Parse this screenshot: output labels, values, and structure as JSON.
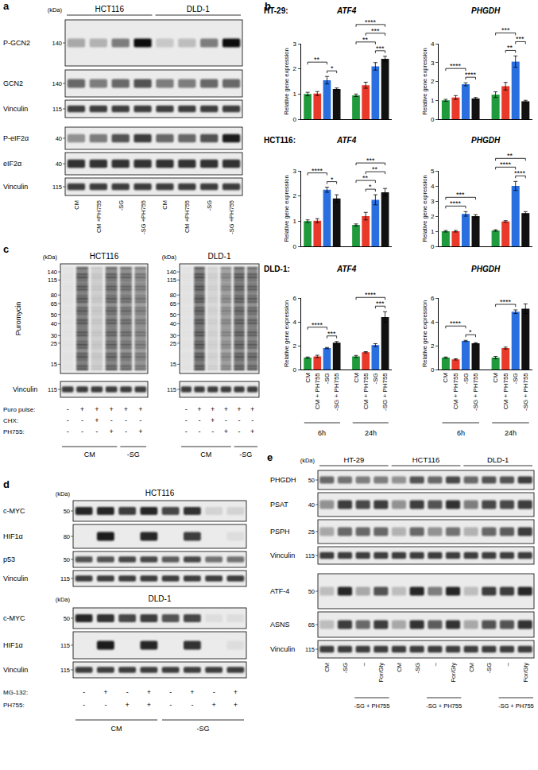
{
  "panel_labels": [
    "a",
    "b",
    "c",
    "d",
    "e"
  ],
  "panel_a": {
    "kda": "(kDa)",
    "groups": [
      {
        "name": "HCT116",
        "lanes": [
          "CM",
          "CM +PH755",
          "-SG",
          "-SG +PH755"
        ]
      },
      {
        "name": "DLD-1",
        "lanes": [
          "CM",
          "CM +PH755",
          "-SG",
          "-SG +PH755"
        ]
      }
    ],
    "rows": [
      {
        "label": "P-GCN2",
        "marker": 140,
        "intensity": [
          0.3,
          0.25,
          0.5,
          1.0,
          0.15,
          0.2,
          0.5,
          1.0
        ]
      },
      {
        "label": "GCN2",
        "marker": 140,
        "intensity": [
          0.6,
          0.5,
          0.6,
          0.7,
          0.5,
          0.5,
          0.6,
          0.6
        ]
      },
      {
        "label": "Vinculin",
        "marker": 115,
        "intensity": [
          0.8,
          0.8,
          0.8,
          0.8,
          0.8,
          0.8,
          0.8,
          0.8
        ]
      },
      {
        "label": "P-eIF2α",
        "marker": 40,
        "intensity": [
          0.4,
          0.5,
          0.7,
          0.8,
          0.6,
          0.6,
          0.7,
          0.95
        ]
      },
      {
        "label": "eIF2α",
        "marker": 40,
        "intensity": [
          0.85,
          0.85,
          0.85,
          0.85,
          0.85,
          0.85,
          0.85,
          0.85
        ]
      },
      {
        "label": "Vinculin",
        "marker": 115,
        "intensity": [
          0.8,
          0.8,
          0.8,
          0.8,
          0.8,
          0.8,
          0.8,
          0.8
        ]
      }
    ]
  },
  "panel_c": {
    "kda": "(kDa)",
    "groups": [
      {
        "name": "HCT116",
        "rows": [
          {
            "label": "Puromycin",
            "smear": true,
            "markers": [
              140,
              115,
              80,
              65,
              50,
              40,
              30,
              25,
              15
            ],
            "intensity": [
              0.05,
              0.9,
              0.2,
              0.85,
              0.8,
              0.7
            ]
          },
          {
            "label": "Vinculin",
            "marker": 115,
            "intensity": [
              0.8,
              0.8,
              0.8,
              0.8,
              0.8,
              0.8
            ]
          }
        ]
      },
      {
        "name": "DLD-1",
        "rows": [
          {
            "smear": true,
            "markers": [
              140,
              115,
              80,
              65,
              50,
              40,
              30,
              25,
              15
            ],
            "intensity": [
              0.05,
              0.95,
              0.15,
              0.6,
              0.9,
              0.85
            ]
          },
          {
            "marker": 115,
            "intensity": [
              0.8,
              0.8,
              0.8,
              0.8,
              0.8,
              0.8
            ]
          }
        ]
      }
    ],
    "conditions": [
      {
        "label": "Puro pulse:",
        "values": [
          "-",
          "+",
          "+",
          "+",
          "+",
          "+"
        ]
      },
      {
        "label": "CHX:",
        "values": [
          "-",
          "-",
          "+",
          "-",
          "-",
          "-"
        ]
      },
      {
        "label": "PH755:",
        "values": [
          "-",
          "-",
          "-",
          "+",
          "-",
          "+"
        ]
      }
    ],
    "media": [
      "CM",
      "CM",
      "CM",
      "CM",
      "-SG",
      "-SG"
    ]
  },
  "panel_d": {
    "kda": "(kDa)",
    "groups": [
      {
        "name": "HCT116",
        "rows": [
          {
            "label": "c-MYC",
            "marker": 50,
            "intensity": [
              0.9,
              0.9,
              0.8,
              0.9,
              0.75,
              0.85,
              0.1,
              0.1
            ]
          },
          {
            "label": "HIF1α",
            "marker": 80,
            "intensity": [
              0,
              0.95,
              0,
              0.9,
              0,
              0.8,
              0,
              0.05
            ]
          },
          {
            "label": "p53",
            "marker": 50,
            "intensity": [
              0.7,
              0.7,
              0.75,
              0.75,
              0.65,
              0.75,
              0.55,
              0.55
            ]
          },
          {
            "label": "Vinculin",
            "marker": 115,
            "intensity": [
              0.8,
              0.8,
              0.8,
              0.8,
              0.8,
              0.8,
              0.8,
              0.8
            ]
          }
        ]
      },
      {
        "name": "DLD-1",
        "rows": [
          {
            "label": "c-MYC",
            "marker": 50,
            "intensity": [
              0.9,
              0.85,
              0.75,
              0.8,
              0.7,
              0.75,
              0.05,
              0.05
            ]
          },
          {
            "label": "HIF1α",
            "marker": 115,
            "intensity": [
              0,
              0.95,
              0,
              0.9,
              0,
              0.85,
              0,
              0.05
            ]
          },
          {
            "label": "Vinculin",
            "marker": 115,
            "intensity": [
              0.8,
              0.8,
              0.8,
              0.8,
              0.8,
              0.8,
              0.8,
              0.8
            ]
          }
        ]
      }
    ],
    "conditions": [
      {
        "label": "MG-132:",
        "values": [
          "-",
          "+",
          "-",
          "+",
          "-",
          "+",
          "-",
          "+"
        ]
      },
      {
        "label": "PH755:",
        "values": [
          "-",
          "-",
          "+",
          "+",
          "-",
          "-",
          "+",
          "+"
        ]
      }
    ],
    "media": [
      "CM",
      "CM",
      "CM",
      "CM",
      "-SG",
      "-SG",
      "-SG",
      "-SG"
    ]
  },
  "panel_e": {
    "kda": "(kDa)",
    "groups": [
      {
        "name": "HT-29",
        "lanes": [
          "CM",
          "-SG",
          "–",
          "For/Gly"
        ],
        "under": [
          null,
          null,
          "-SG + PH755",
          "-SG + PH755"
        ]
      },
      {
        "name": "HCT116",
        "lanes": [
          "CM",
          "-SG",
          "–",
          "For/Gly"
        ],
        "under": [
          null,
          null,
          "-SG + PH755",
          "-SG + PH755"
        ]
      },
      {
        "name": "DLD-1",
        "lanes": [
          "CM",
          "-SG",
          "–",
          "For/Gly"
        ],
        "under": [
          null,
          null,
          "-SG + PH755",
          "-SG + PH755"
        ]
      }
    ],
    "rows": [
      {
        "label": "PHGDH",
        "marker": 50,
        "intensity": [
          0.6,
          0.55,
          0.5,
          0.5,
          0.4,
          0.7,
          0.6,
          0.75,
          0.6,
          0.7,
          0.7,
          0.8
        ]
      },
      {
        "label": "PSAT",
        "marker": 40,
        "intensity": [
          0.4,
          0.8,
          0.75,
          0.8,
          0.4,
          0.8,
          0.7,
          0.85,
          0.5,
          0.75,
          0.75,
          0.8
        ]
      },
      {
        "label": "PSPH",
        "marker": 25,
        "intensity": [
          0.3,
          0.6,
          0.6,
          0.6,
          0.25,
          0.6,
          0.4,
          0.55,
          0.25,
          0.6,
          0.65,
          0.8
        ]
      },
      {
        "label": "Vinculin",
        "marker": 115,
        "intensity": [
          0.8,
          0.8,
          0.8,
          0.8,
          0.8,
          0.8,
          0.8,
          0.8,
          0.8,
          0.8,
          0.8,
          0.8
        ]
      },
      {
        "label": "ATF-4",
        "marker": 50,
        "intensity": [
          0.2,
          0.9,
          0.3,
          0.7,
          0.2,
          0.9,
          0.5,
          0.9,
          0.2,
          0.8,
          0.8,
          0.9
        ]
      },
      {
        "label": "ASNS",
        "marker": 65,
        "intensity": [
          0.2,
          0.8,
          0.6,
          0.8,
          0.3,
          0.85,
          0.65,
          0.85,
          0.3,
          0.7,
          0.7,
          0.85
        ]
      },
      {
        "label": "Vinculin",
        "marker": 115,
        "intensity": [
          0.8,
          0.8,
          0.8,
          0.8,
          0.8,
          0.8,
          0.8,
          0.8,
          0.8,
          0.8,
          0.8,
          0.8
        ]
      }
    ]
  },
  "chart_data": [
    {
      "type": "bar",
      "subtitle": "HT-29:",
      "title": "ATF4",
      "y_label": "Relative gene expression",
      "categories": [
        "CM",
        "CM + PH755",
        "-SG",
        "-SG + PH755"
      ],
      "colors": [
        "#1f9a3c",
        "#e8392a",
        "#2a6fe0",
        "#111111"
      ],
      "series": [
        {
          "name": "6h",
          "values": [
            1.0,
            1.02,
            1.55,
            1.2
          ],
          "errors": [
            0.07,
            0.08,
            0.15,
            0.04
          ]
        },
        {
          "name": "24h",
          "values": [
            0.95,
            1.35,
            2.1,
            2.4
          ],
          "errors": [
            0.05,
            0.12,
            0.15,
            0.1
          ]
        }
      ],
      "ylim": [
        0,
        3
      ],
      "yticks": [
        0,
        1,
        2,
        3
      ],
      "tick_labels": "y",
      "significance": [
        {
          "group": 0,
          "from": 0,
          "to": 2,
          "label": "**"
        },
        {
          "group": 0,
          "from": 2,
          "to": 3,
          "label": "*"
        },
        {
          "group": 1,
          "from": 2,
          "to": 3,
          "label": "***"
        },
        {
          "group": 1,
          "from": 0,
          "to": 2,
          "label": "**"
        },
        {
          "group": 1,
          "from": 1,
          "to": 3,
          "label": "***"
        },
        {
          "group": 1,
          "from": 0,
          "to": 3,
          "label": "****"
        }
      ]
    },
    {
      "type": "bar",
      "title": "PHGDH",
      "y_label": "Relative gene expression",
      "categories": [
        "CM",
        "CM + PH755",
        "-SG",
        "-SG + PH755"
      ],
      "colors": [
        "#1f9a3c",
        "#e8392a",
        "#2a6fe0",
        "#111111"
      ],
      "series": [
        {
          "name": "6h",
          "values": [
            1.0,
            1.15,
            1.85,
            1.1
          ],
          "errors": [
            0.05,
            0.1,
            0.08,
            0.05
          ]
        },
        {
          "name": "24h",
          "values": [
            1.3,
            1.75,
            3.05,
            0.95
          ],
          "errors": [
            0.15,
            0.2,
            0.3,
            0.05
          ]
        }
      ],
      "ylim": [
        0,
        4
      ],
      "yticks": [
        0,
        1,
        2,
        3,
        4
      ],
      "tick_labels": "y",
      "significance": [
        {
          "group": 0,
          "from": 0,
          "to": 2,
          "label": "****"
        },
        {
          "group": 0,
          "from": 2,
          "to": 3,
          "label": "****"
        },
        {
          "group": 1,
          "from": 0,
          "to": 2,
          "label": "***"
        },
        {
          "group": 1,
          "from": 1,
          "to": 2,
          "label": "**"
        },
        {
          "group": 1,
          "from": 2,
          "to": 3,
          "label": "***"
        }
      ]
    },
    {
      "type": "bar",
      "subtitle": "HCT116:",
      "title": "ATF4",
      "y_label": "Relative gene expression",
      "categories": [
        "CM",
        "CM + PH755",
        "-SG",
        "-SG + PH755"
      ],
      "colors": [
        "#1f9a3c",
        "#e8392a",
        "#2a6fe0",
        "#111111"
      ],
      "series": [
        {
          "name": "6h",
          "values": [
            1.0,
            1.02,
            2.25,
            1.9
          ],
          "errors": [
            0.05,
            0.08,
            0.1,
            0.15
          ]
        },
        {
          "name": "24h",
          "values": [
            0.85,
            1.2,
            1.85,
            2.15
          ],
          "errors": [
            0.04,
            0.15,
            0.2,
            0.15
          ]
        }
      ],
      "ylim": [
        0,
        3
      ],
      "yticks": [
        0,
        1,
        2,
        3
      ],
      "tick_labels": "y",
      "significance": [
        {
          "group": 0,
          "from": 0,
          "to": 2,
          "label": "****"
        },
        {
          "group": 0,
          "from": 2,
          "to": 3,
          "label": "*"
        },
        {
          "group": 1,
          "from": 1,
          "to": 2,
          "label": "*"
        },
        {
          "group": 1,
          "from": 1,
          "to": 3,
          "label": "**"
        },
        {
          "group": 1,
          "from": 0,
          "to": 2,
          "label": "**"
        },
        {
          "group": 1,
          "from": 0,
          "to": 3,
          "label": "***"
        }
      ]
    },
    {
      "type": "bar",
      "title": "PHGDH",
      "y_label": "Relative gene expression",
      "categories": [
        "CM",
        "CM + PH755",
        "-SG",
        "-SG + PH755"
      ],
      "colors": [
        "#1f9a3c",
        "#e8392a",
        "#2a6fe0",
        "#111111"
      ],
      "series": [
        {
          "name": "6h",
          "values": [
            1.0,
            1.0,
            2.15,
            2.0
          ],
          "errors": [
            0.05,
            0.05,
            0.15,
            0.1
          ]
        },
        {
          "name": "24h",
          "values": [
            1.05,
            1.65,
            4.0,
            2.2
          ],
          "errors": [
            0.05,
            0.05,
            0.3,
            0.1
          ]
        }
      ],
      "ylim": [
        0,
        5
      ],
      "yticks": [
        0,
        1,
        2,
        3,
        4,
        5
      ],
      "tick_labels": "y",
      "significance": [
        {
          "group": 0,
          "from": 0,
          "to": 2,
          "label": "****"
        },
        {
          "group": 0,
          "from": 0,
          "to": 3,
          "label": "***"
        },
        {
          "group": 1,
          "from": 0,
          "to": 2,
          "label": "****"
        },
        {
          "group": 1,
          "from": 2,
          "to": 3,
          "label": "****"
        },
        {
          "group": 1,
          "from": 0,
          "to": 3,
          "label": "**"
        }
      ]
    },
    {
      "type": "bar",
      "subtitle": "DLD-1:",
      "title": "ATF4",
      "y_label": "Relative gene expression",
      "categories": [
        "CM",
        "CM + PH755",
        "-SG",
        "-SG + PH755"
      ],
      "colors": [
        "#1f9a3c",
        "#e8392a",
        "#2a6fe0",
        "#111111"
      ],
      "series": [
        {
          "name": "6h",
          "values": [
            1.0,
            1.1,
            1.8,
            2.25
          ],
          "errors": [
            0.05,
            0.1,
            0.05,
            0.1
          ]
        },
        {
          "name": "24h",
          "values": [
            1.1,
            1.45,
            2.05,
            4.4
          ],
          "errors": [
            0.08,
            0.05,
            0.12,
            0.45
          ]
        }
      ],
      "ylim": [
        0,
        6
      ],
      "yticks": [
        0,
        2,
        4,
        6
      ],
      "significance": [
        {
          "group": 0,
          "from": 0,
          "to": 2,
          "label": "****"
        },
        {
          "group": 0,
          "from": 2,
          "to": 3,
          "label": "***"
        },
        {
          "group": 1,
          "from": 2,
          "to": 3,
          "label": "***"
        },
        {
          "group": 1,
          "from": 0,
          "to": 3,
          "label": "****"
        }
      ]
    },
    {
      "type": "bar",
      "title": "PHGDH",
      "y_label": "Relative gene expression",
      "categories": [
        "CM",
        "CM + PH755",
        "-SG",
        "-SG + PH755"
      ],
      "colors": [
        "#1f9a3c",
        "#e8392a",
        "#2a6fe0",
        "#111111"
      ],
      "series": [
        {
          "name": "6h",
          "values": [
            1.0,
            0.85,
            2.4,
            2.2
          ],
          "errors": [
            0.05,
            0.05,
            0.05,
            0.05
          ]
        },
        {
          "name": "24h",
          "values": [
            1.0,
            1.8,
            4.85,
            5.1
          ],
          "errors": [
            0.1,
            0.08,
            0.15,
            0.4
          ]
        }
      ],
      "ylim": [
        0,
        6
      ],
      "yticks": [
        0,
        2,
        4,
        6
      ],
      "significance": [
        {
          "group": 0,
          "from": 0,
          "to": 2,
          "label": "****"
        },
        {
          "group": 0,
          "from": 2,
          "to": 3,
          "label": "*"
        },
        {
          "group": 1,
          "from": 0,
          "to": 2,
          "label": "****"
        }
      ]
    }
  ]
}
